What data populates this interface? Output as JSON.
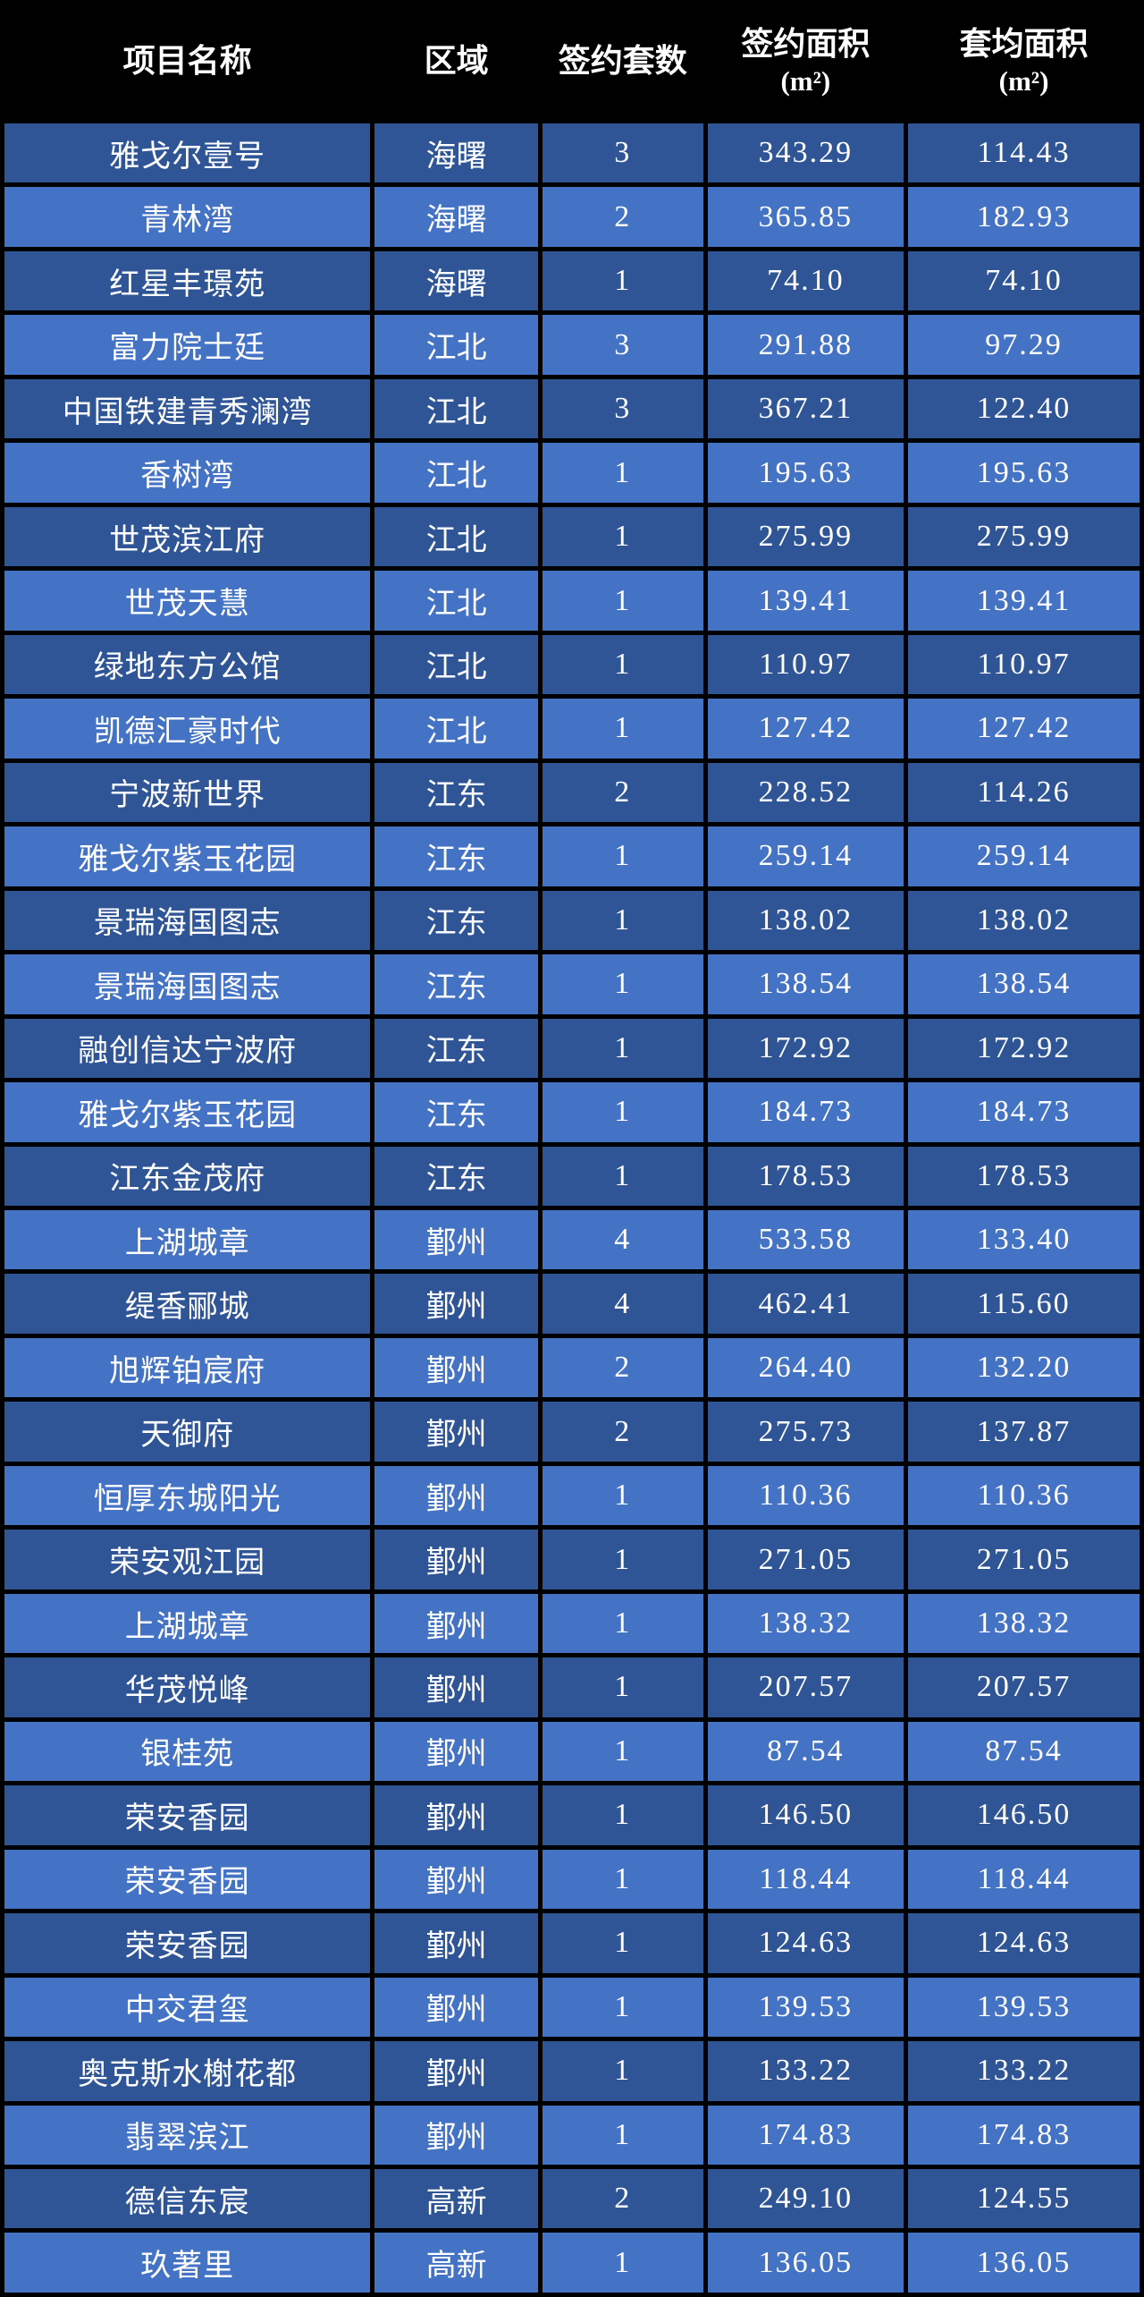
{
  "chart_data": {
    "type": "table",
    "title": "",
    "columns": [
      {
        "label": "项目名称",
        "sub": ""
      },
      {
        "label": "区域",
        "sub": ""
      },
      {
        "label": "签约套数",
        "sub": ""
      },
      {
        "label": "签约面积",
        "sub": "(m²)"
      },
      {
        "label": "套均面积",
        "sub": "(m²)"
      }
    ],
    "rows": [
      {
        "name": "雅戈尔壹号",
        "district": "海曙",
        "units": "3",
        "area": "343.29",
        "avg": "114.43"
      },
      {
        "name": "青林湾",
        "district": "海曙",
        "units": "2",
        "area": "365.85",
        "avg": "182.93"
      },
      {
        "name": "红星丰璟苑",
        "district": "海曙",
        "units": "1",
        "area": "74.10",
        "avg": "74.10"
      },
      {
        "name": "富力院士廷",
        "district": "江北",
        "units": "3",
        "area": "291.88",
        "avg": "97.29"
      },
      {
        "name": "中国铁建青秀澜湾",
        "district": "江北",
        "units": "3",
        "area": "367.21",
        "avg": "122.40"
      },
      {
        "name": "香树湾",
        "district": "江北",
        "units": "1",
        "area": "195.63",
        "avg": "195.63"
      },
      {
        "name": "世茂滨江府",
        "district": "江北",
        "units": "1",
        "area": "275.99",
        "avg": "275.99"
      },
      {
        "name": "世茂天慧",
        "district": "江北",
        "units": "1",
        "area": "139.41",
        "avg": "139.41"
      },
      {
        "name": "绿地东方公馆",
        "district": "江北",
        "units": "1",
        "area": "110.97",
        "avg": "110.97"
      },
      {
        "name": "凯德汇豪时代",
        "district": "江北",
        "units": "1",
        "area": "127.42",
        "avg": "127.42"
      },
      {
        "name": "宁波新世界",
        "district": "江东",
        "units": "2",
        "area": "228.52",
        "avg": "114.26"
      },
      {
        "name": "雅戈尔紫玉花园",
        "district": "江东",
        "units": "1",
        "area": "259.14",
        "avg": "259.14"
      },
      {
        "name": "景瑞海国图志",
        "district": "江东",
        "units": "1",
        "area": "138.02",
        "avg": "138.02"
      },
      {
        "name": "景瑞海国图志",
        "district": "江东",
        "units": "1",
        "area": "138.54",
        "avg": "138.54"
      },
      {
        "name": "融创信达宁波府",
        "district": "江东",
        "units": "1",
        "area": "172.92",
        "avg": "172.92"
      },
      {
        "name": "雅戈尔紫玉花园",
        "district": "江东",
        "units": "1",
        "area": "184.73",
        "avg": "184.73"
      },
      {
        "name": "江东金茂府",
        "district": "江东",
        "units": "1",
        "area": "178.53",
        "avg": "178.53"
      },
      {
        "name": "上湖城章",
        "district": "鄞州",
        "units": "4",
        "area": "533.58",
        "avg": "133.40"
      },
      {
        "name": "缇香郦城",
        "district": "鄞州",
        "units": "4",
        "area": "462.41",
        "avg": "115.60"
      },
      {
        "name": "旭辉铂宸府",
        "district": "鄞州",
        "units": "2",
        "area": "264.40",
        "avg": "132.20"
      },
      {
        "name": "天御府",
        "district": "鄞州",
        "units": "2",
        "area": "275.73",
        "avg": "137.87"
      },
      {
        "name": "恒厚东城阳光",
        "district": "鄞州",
        "units": "1",
        "area": "110.36",
        "avg": "110.36"
      },
      {
        "name": "荣安观江园",
        "district": "鄞州",
        "units": "1",
        "area": "271.05",
        "avg": "271.05"
      },
      {
        "name": "上湖城章",
        "district": "鄞州",
        "units": "1",
        "area": "138.32",
        "avg": "138.32"
      },
      {
        "name": "华茂悦峰",
        "district": "鄞州",
        "units": "1",
        "area": "207.57",
        "avg": "207.57"
      },
      {
        "name": "银桂苑",
        "district": "鄞州",
        "units": "1",
        "area": "87.54",
        "avg": "87.54"
      },
      {
        "name": "荣安香园",
        "district": "鄞州",
        "units": "1",
        "area": "146.50",
        "avg": "146.50"
      },
      {
        "name": "荣安香园",
        "district": "鄞州",
        "units": "1",
        "area": "118.44",
        "avg": "118.44"
      },
      {
        "name": "荣安香园",
        "district": "鄞州",
        "units": "1",
        "area": "124.63",
        "avg": "124.63"
      },
      {
        "name": "中交君玺",
        "district": "鄞州",
        "units": "1",
        "area": "139.53",
        "avg": "139.53"
      },
      {
        "name": "奥克斯水榭花都",
        "district": "鄞州",
        "units": "1",
        "area": "133.22",
        "avg": "133.22"
      },
      {
        "name": "翡翠滨江",
        "district": "鄞州",
        "units": "1",
        "area": "174.83",
        "avg": "174.83"
      },
      {
        "name": "德信东宸",
        "district": "高新",
        "units": "2",
        "area": "249.10",
        "avg": "124.55"
      },
      {
        "name": "玖著里",
        "district": "高新",
        "units": "1",
        "area": "136.05",
        "avg": "136.05"
      }
    ],
    "style": {
      "header_bg": "#000000",
      "row_dark": "#2F5597",
      "row_light": "#4472C4",
      "text": "#FFFFFF",
      "border": "#000000"
    }
  }
}
